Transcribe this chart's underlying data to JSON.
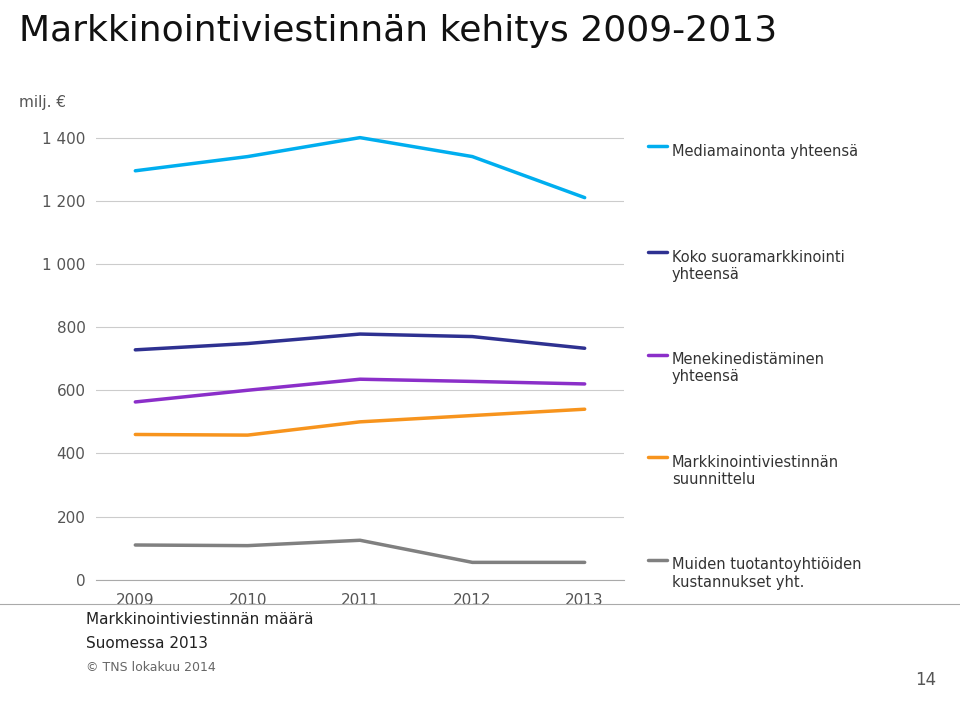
{
  "title": "Markkinointiviestinnän kehitys 2009-2013",
  "ylabel": "milj. €",
  "years": [
    2009,
    2010,
    2011,
    2012,
    2013
  ],
  "series": [
    {
      "label": "Mediamainonta yhteensä",
      "color": "#00AEEF",
      "values": [
        1295,
        1340,
        1400,
        1340,
        1210
      ]
    },
    {
      "label": "Koko suoramarkkinointi\nyhteensä",
      "color": "#2E3191",
      "values": [
        728,
        748,
        778,
        770,
        733
      ]
    },
    {
      "label": "Menekinedistäminen\nyhteensä",
      "color": "#8B2FC9",
      "values": [
        563,
        600,
        635,
        628,
        620
      ]
    },
    {
      "label": "Markkinointiviestinnän\nsuunnittelu",
      "color": "#F7941D",
      "values": [
        460,
        458,
        500,
        520,
        540
      ]
    },
    {
      "label": "Muiden tuotantoyhtiöiden\nkustannukset yht.",
      "color": "#808080",
      "values": [
        110,
        108,
        125,
        55,
        55
      ]
    }
  ],
  "ylim": [
    0,
    1500
  ],
  "yticks": [
    0,
    200,
    400,
    600,
    800,
    1000,
    1200,
    1400
  ],
  "ytick_labels": [
    "0",
    "200",
    "400",
    "600",
    "800",
    "1 000",
    "1 200",
    "1 400"
  ],
  "background_color": "#FFFFFF",
  "plot_area_color": "#FFFFFF",
  "grid_color": "#CCCCCC",
  "title_fontsize": 26,
  "tick_fontsize": 11,
  "line_width": 2.5,
  "footer_text1": "Markkinointiviestinnän määrä",
  "footer_text2": "Suomessa 2013",
  "footer_text3": "© TNS lokakuu 2014",
  "page_number": "14",
  "tns_color": "#E6007E"
}
